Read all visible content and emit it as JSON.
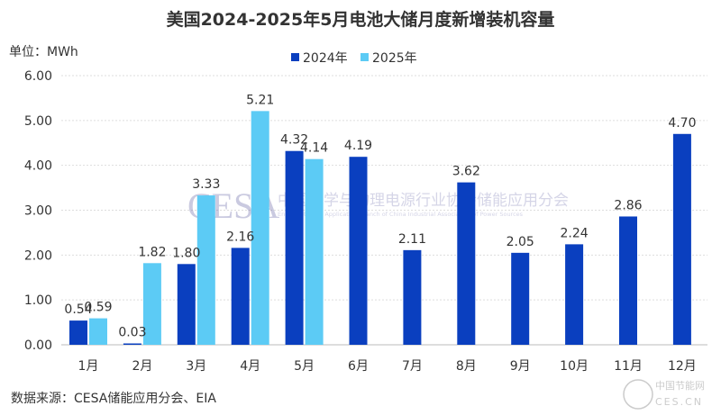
{
  "chart_data": {
    "type": "bar",
    "title": "美国2024-2025年5月电池大储月度新增装机容量",
    "ylabel": "单位：MWh",
    "ylim": [
      0,
      6
    ],
    "yticks": [
      "0.00",
      "1.00",
      "2.00",
      "3.00",
      "4.00",
      "5.00",
      "6.00"
    ],
    "grid": true,
    "legend_position": "top-center",
    "categories": [
      "1月",
      "2月",
      "3月",
      "4月",
      "5月",
      "6月",
      "7月",
      "8月",
      "9月",
      "10月",
      "11月",
      "12月"
    ],
    "series": [
      {
        "name": "2024年",
        "color": "#0a3fbf",
        "values": [
          0.54,
          0.03,
          1.8,
          2.16,
          4.32,
          4.19,
          2.11,
          3.62,
          2.05,
          2.24,
          2.86,
          4.7
        ]
      },
      {
        "name": "2025年",
        "color": "#5ccbf5",
        "values": [
          0.59,
          1.82,
          3.33,
          5.21,
          4.14,
          null,
          null,
          null,
          null,
          null,
          null,
          null
        ]
      }
    ],
    "source": "数据来源：CESA储能应用分会、EIA"
  },
  "watermark": {
    "logo": "CESA",
    "cn": "中国化学与物理电源行业协会储能应用分会",
    "en": "Energy Storage Application Branch of China Industrial Association of Power Sources"
  },
  "corner_logo": {
    "cn": "中国节能网",
    "en": "CES.CN"
  }
}
